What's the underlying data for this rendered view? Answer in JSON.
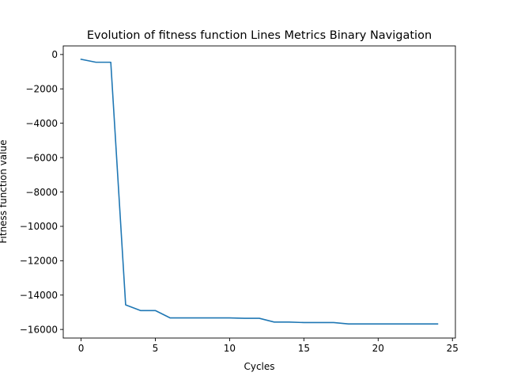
{
  "chart_data": {
    "type": "line",
    "title": "Evolution of fitness function Lines Metrics Binary Navigation",
    "xlabel": "Cycles",
    "ylabel": "Fitness function value",
    "xlim": [
      -1.2,
      25.2
    ],
    "ylim": [
      -16500,
      500
    ],
    "xticks": [
      0,
      5,
      10,
      15,
      20,
      25
    ],
    "yticks": [
      0,
      -2000,
      -4000,
      -6000,
      -8000,
      -10000,
      -12000,
      -14000,
      -16000
    ],
    "grid": false,
    "line_color": "#1f77b4",
    "series": [
      {
        "x": [
          0,
          1,
          2,
          3,
          4,
          5,
          6,
          7,
          8,
          9,
          10,
          11,
          12,
          13,
          14,
          15,
          16,
          17,
          18,
          19,
          20,
          21,
          22,
          23,
          24
        ],
        "values": [
          -280,
          -450,
          -450,
          -14570,
          -14900,
          -14900,
          -15330,
          -15330,
          -15330,
          -15330,
          -15330,
          -15350,
          -15350,
          -15570,
          -15570,
          -15600,
          -15600,
          -15600,
          -15680,
          -15680,
          -15680,
          -15680,
          -15680,
          -15680,
          -15680
        ]
      }
    ]
  }
}
